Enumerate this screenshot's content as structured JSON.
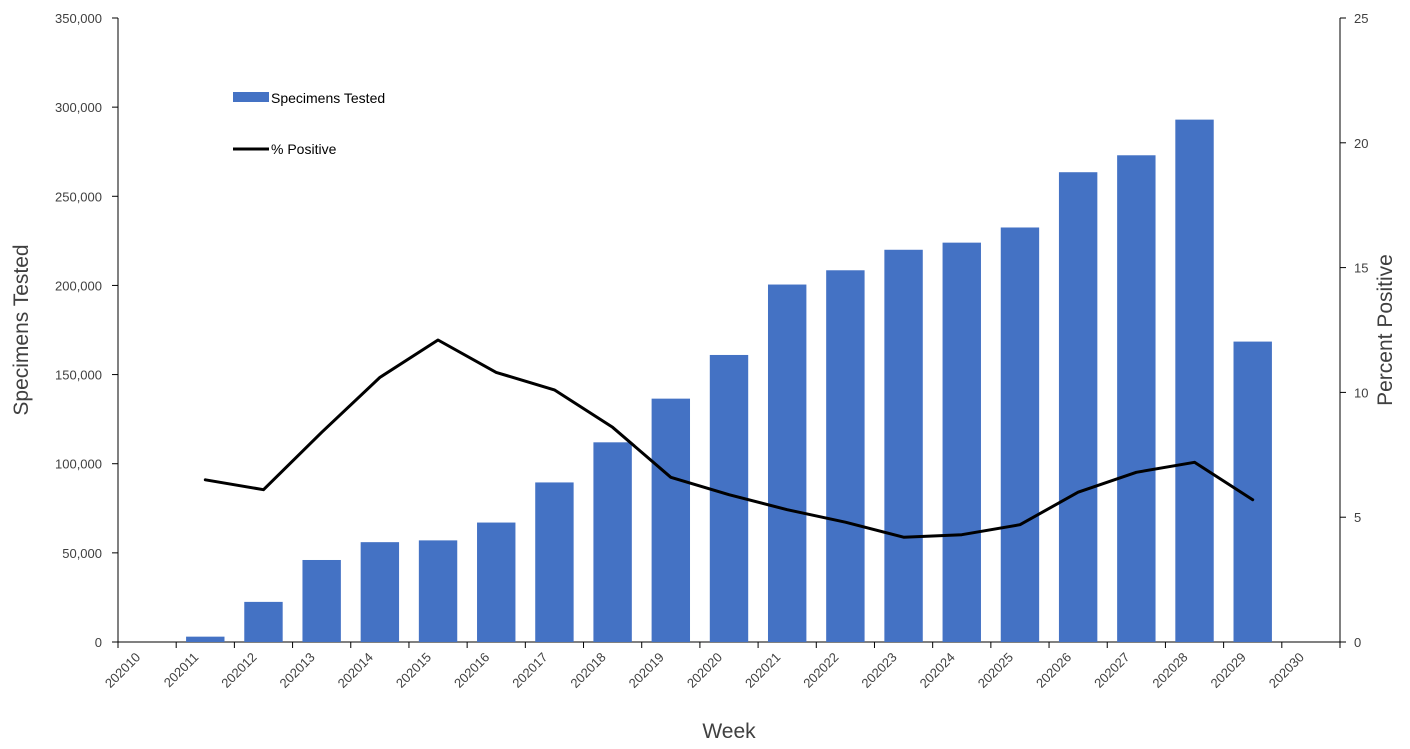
{
  "chart_data": {
    "type": "bar",
    "xlabel": "Week",
    "ylabel": "Specimens Tested",
    "y2label": "Percent Positive",
    "categories": [
      "202010",
      "202011",
      "202012",
      "202013",
      "202014",
      "202015",
      "202016",
      "202017",
      "202018",
      "202019",
      "202020",
      "202021",
      "202022",
      "202023",
      "202024",
      "202025",
      "202026",
      "202027",
      "202028",
      "202029",
      "202030"
    ],
    "ylim": [
      0,
      350000
    ],
    "y_ticks": [
      0,
      50000,
      100000,
      150000,
      200000,
      250000,
      300000,
      350000
    ],
    "y_tick_labels": [
      "0",
      "50,000",
      "100,000",
      "150,000",
      "200,000",
      "250,000",
      "300,000",
      "350,000"
    ],
    "y2lim": [
      0,
      25
    ],
    "y2_ticks": [
      0,
      5,
      10,
      15,
      20,
      25
    ],
    "y2_tick_labels": [
      "0",
      "5",
      "10",
      "15",
      "20",
      "25"
    ],
    "series": [
      {
        "name": "Specimens Tested",
        "type": "bar",
        "axis": "left",
        "color": "#4472C4",
        "values": [
          null,
          3000,
          22500,
          46000,
          56000,
          57000,
          67000,
          89500,
          112000,
          136500,
          161000,
          200500,
          208500,
          220000,
          224000,
          232500,
          263500,
          273000,
          293000,
          168500,
          null
        ]
      },
      {
        "name": "% Positive",
        "type": "line",
        "axis": "right",
        "color": "#000000",
        "values": [
          null,
          6.5,
          6.1,
          8.4,
          10.6,
          12.1,
          10.8,
          10.1,
          8.6,
          6.6,
          5.9,
          5.3,
          4.8,
          4.2,
          4.3,
          4.7,
          6.0,
          6.8,
          7.2,
          5.7,
          null
        ]
      }
    ],
    "legend": {
      "placement": "top-left",
      "items": [
        {
          "label": "Specimens Tested",
          "kind": "bar",
          "color": "#4472C4"
        },
        {
          "label": "% Positive",
          "kind": "line",
          "color": "#000000"
        }
      ]
    },
    "grid": false
  }
}
